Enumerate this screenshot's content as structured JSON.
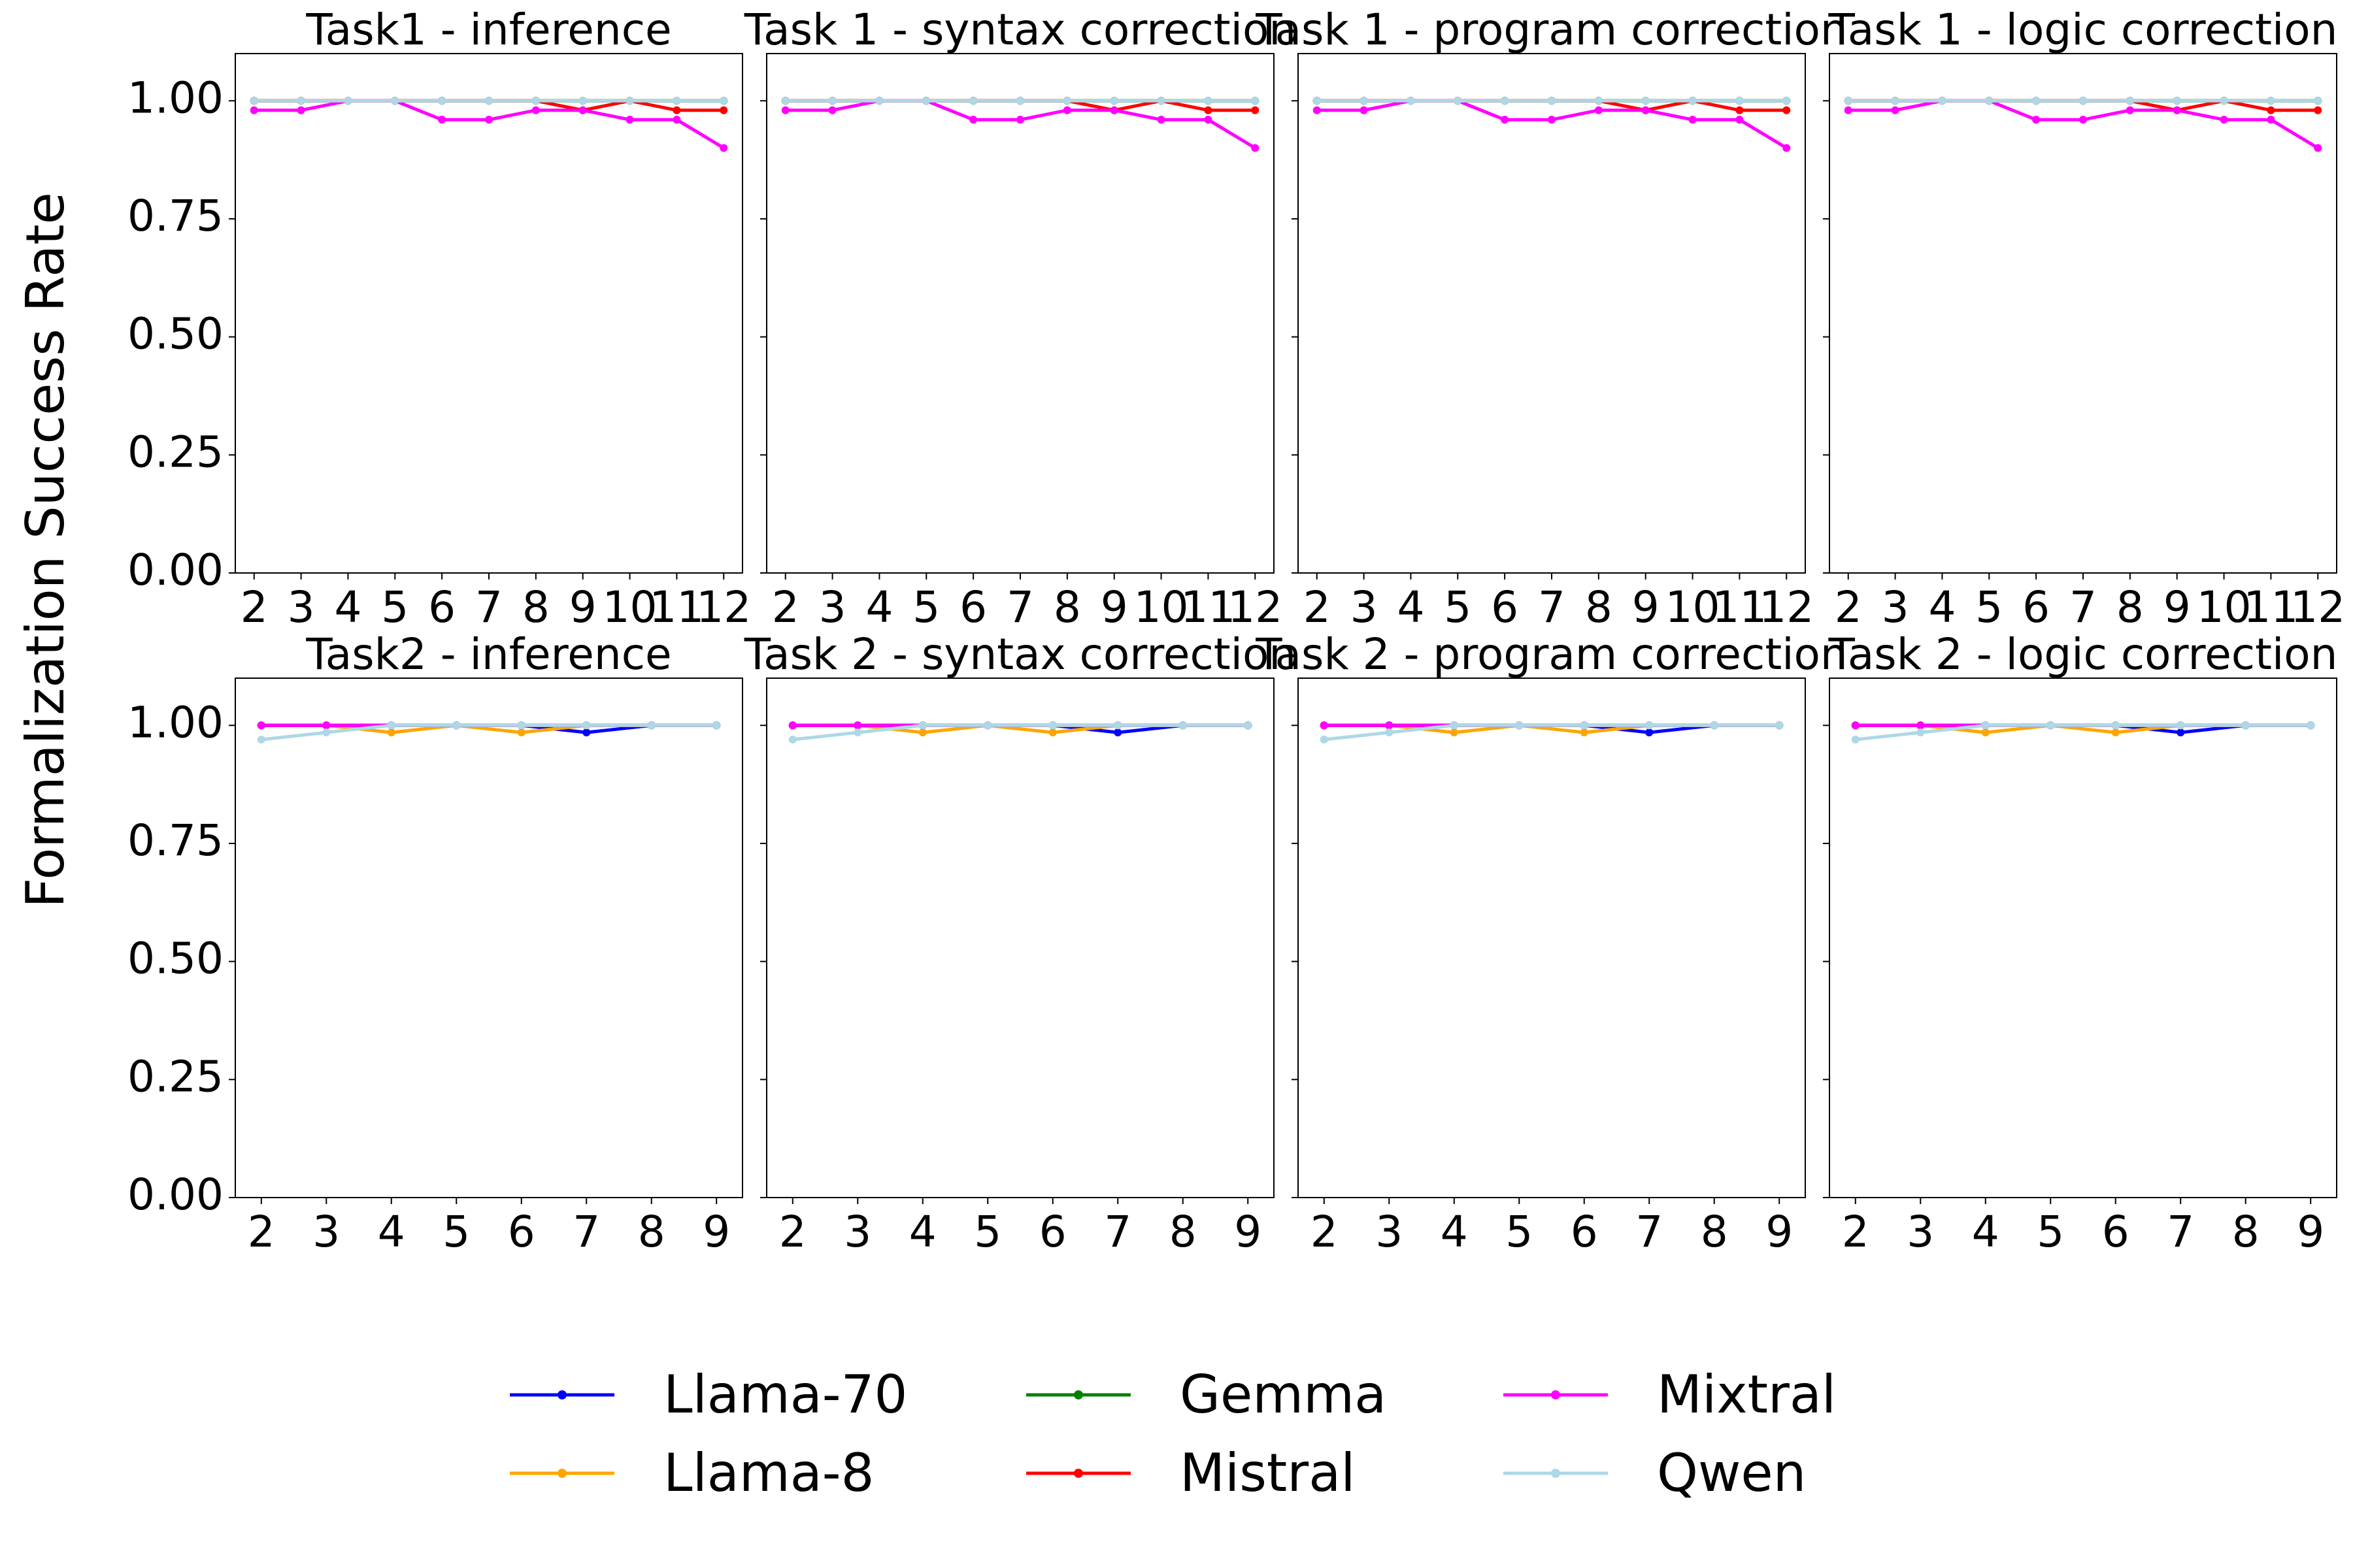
{
  "figure": {
    "ylabel": "Formalization Success Rate"
  },
  "colors": {
    "Llama-70": "#0000ff",
    "Llama-8": "#ffa500",
    "Gemma": "#008000",
    "Mistral": "#ff0000",
    "Mixtral": "#ff00ff",
    "Qwen": "#add8e6"
  },
  "legend": [
    "Llama-70",
    "Llama-8",
    "Gemma",
    "Mistral",
    "Mixtral",
    "Qwen"
  ],
  "chart_data": [
    {
      "type": "line",
      "title": "Task1 - inference",
      "x": [
        2,
        3,
        4,
        5,
        6,
        7,
        8,
        9,
        10,
        11,
        12
      ],
      "ylim": [
        0,
        1.1
      ],
      "yticks": [
        "0.00",
        "0.25",
        "0.50",
        "0.75",
        "1.00"
      ],
      "series": [
        {
          "name": "Llama-70",
          "values": [
            1,
            1,
            1,
            1,
            1,
            1,
            1,
            1,
            1,
            1,
            1
          ]
        },
        {
          "name": "Llama-8",
          "values": [
            1,
            1,
            1,
            1,
            1,
            1,
            1,
            1,
            1,
            1,
            1
          ]
        },
        {
          "name": "Gemma",
          "values": [
            1,
            1,
            1,
            1,
            1,
            1,
            1,
            1,
            1,
            1,
            1
          ]
        },
        {
          "name": "Mistral",
          "values": [
            1,
            1,
            1,
            1,
            1,
            1,
            1,
            0.98,
            1,
            0.98,
            0.98
          ]
        },
        {
          "name": "Mixtral",
          "values": [
            0.98,
            0.98,
            1,
            1,
            0.96,
            0.96,
            0.98,
            0.98,
            0.96,
            0.96,
            0.9
          ]
        },
        {
          "name": "Qwen",
          "values": [
            1,
            1,
            1,
            1,
            1,
            1,
            1,
            1,
            1,
            1,
            1
          ]
        }
      ]
    },
    {
      "type": "line",
      "title": "Task 1 - syntax correction",
      "x": [
        2,
        3,
        4,
        5,
        6,
        7,
        8,
        9,
        10,
        11,
        12
      ],
      "ylim": [
        0,
        1.1
      ],
      "yticks": [
        "0.00",
        "0.25",
        "0.50",
        "0.75",
        "1.00"
      ],
      "series": [
        {
          "name": "Llama-70",
          "values": [
            1,
            1,
            1,
            1,
            1,
            1,
            1,
            1,
            1,
            1,
            1
          ]
        },
        {
          "name": "Llama-8",
          "values": [
            1,
            1,
            1,
            1,
            1,
            1,
            1,
            1,
            1,
            1,
            1
          ]
        },
        {
          "name": "Gemma",
          "values": [
            1,
            1,
            1,
            1,
            1,
            1,
            1,
            1,
            1,
            1,
            1
          ]
        },
        {
          "name": "Mistral",
          "values": [
            1,
            1,
            1,
            1,
            1,
            1,
            1,
            0.98,
            1,
            0.98,
            0.98
          ]
        },
        {
          "name": "Mixtral",
          "values": [
            0.98,
            0.98,
            1,
            1,
            0.96,
            0.96,
            0.98,
            0.98,
            0.96,
            0.96,
            0.9
          ]
        },
        {
          "name": "Qwen",
          "values": [
            1,
            1,
            1,
            1,
            1,
            1,
            1,
            1,
            1,
            1,
            1
          ]
        }
      ]
    },
    {
      "type": "line",
      "title": "Task 1 - program correction",
      "x": [
        2,
        3,
        4,
        5,
        6,
        7,
        8,
        9,
        10,
        11,
        12
      ],
      "ylim": [
        0,
        1.1
      ],
      "yticks": [
        "0.00",
        "0.25",
        "0.50",
        "0.75",
        "1.00"
      ],
      "series": [
        {
          "name": "Llama-70",
          "values": [
            1,
            1,
            1,
            1,
            1,
            1,
            1,
            1,
            1,
            1,
            1
          ]
        },
        {
          "name": "Llama-8",
          "values": [
            1,
            1,
            1,
            1,
            1,
            1,
            1,
            1,
            1,
            1,
            1
          ]
        },
        {
          "name": "Gemma",
          "values": [
            1,
            1,
            1,
            1,
            1,
            1,
            1,
            1,
            1,
            1,
            1
          ]
        },
        {
          "name": "Mistral",
          "values": [
            1,
            1,
            1,
            1,
            1,
            1,
            1,
            0.98,
            1,
            0.98,
            0.98
          ]
        },
        {
          "name": "Mixtral",
          "values": [
            0.98,
            0.98,
            1,
            1,
            0.96,
            0.96,
            0.98,
            0.98,
            0.96,
            0.96,
            0.9
          ]
        },
        {
          "name": "Qwen",
          "values": [
            1,
            1,
            1,
            1,
            1,
            1,
            1,
            1,
            1,
            1,
            1
          ]
        }
      ]
    },
    {
      "type": "line",
      "title": "Task 1 - logic correction",
      "x": [
        2,
        3,
        4,
        5,
        6,
        7,
        8,
        9,
        10,
        11,
        12
      ],
      "ylim": [
        0,
        1.1
      ],
      "yticks": [
        "0.00",
        "0.25",
        "0.50",
        "0.75",
        "1.00"
      ],
      "series": [
        {
          "name": "Llama-70",
          "values": [
            1,
            1,
            1,
            1,
            1,
            1,
            1,
            1,
            1,
            1,
            1
          ]
        },
        {
          "name": "Llama-8",
          "values": [
            1,
            1,
            1,
            1,
            1,
            1,
            1,
            1,
            1,
            1,
            1
          ]
        },
        {
          "name": "Gemma",
          "values": [
            1,
            1,
            1,
            1,
            1,
            1,
            1,
            1,
            1,
            1,
            1
          ]
        },
        {
          "name": "Mistral",
          "values": [
            1,
            1,
            1,
            1,
            1,
            1,
            1,
            0.98,
            1,
            0.98,
            0.98
          ]
        },
        {
          "name": "Mixtral",
          "values": [
            0.98,
            0.98,
            1,
            1,
            0.96,
            0.96,
            0.98,
            0.98,
            0.96,
            0.96,
            0.9
          ]
        },
        {
          "name": "Qwen",
          "values": [
            1,
            1,
            1,
            1,
            1,
            1,
            1,
            1,
            1,
            1,
            1
          ]
        }
      ]
    },
    {
      "type": "line",
      "title": "Task2 - inference",
      "x": [
        2,
        3,
        4,
        5,
        6,
        7,
        8,
        9
      ],
      "ylim": [
        0,
        1.1
      ],
      "yticks": [
        "0.00",
        "0.25",
        "0.50",
        "0.75",
        "1.00"
      ],
      "series": [
        {
          "name": "Llama-70",
          "values": [
            1,
            1,
            1,
            1,
            1,
            0.985,
            1,
            1
          ]
        },
        {
          "name": "Llama-8",
          "values": [
            1,
            1,
            0.985,
            1,
            0.985,
            1,
            1,
            1
          ]
        },
        {
          "name": "Gemma",
          "values": [
            1,
            1,
            1,
            1,
            1,
            1,
            1,
            1
          ]
        },
        {
          "name": "Mistral",
          "values": [
            1,
            1,
            1,
            1,
            1,
            1,
            1,
            1
          ]
        },
        {
          "name": "Mixtral",
          "values": [
            1,
            1,
            1,
            1,
            1,
            1,
            1,
            1
          ]
        },
        {
          "name": "Qwen",
          "values": [
            0.97,
            0.985,
            1,
            1,
            1,
            1,
            1,
            1
          ]
        }
      ]
    },
    {
      "type": "line",
      "title": "Task 2 - syntax correction",
      "x": [
        2,
        3,
        4,
        5,
        6,
        7,
        8,
        9
      ],
      "ylim": [
        0,
        1.1
      ],
      "yticks": [
        "0.00",
        "0.25",
        "0.50",
        "0.75",
        "1.00"
      ],
      "series": [
        {
          "name": "Llama-70",
          "values": [
            1,
            1,
            1,
            1,
            1,
            0.985,
            1,
            1
          ]
        },
        {
          "name": "Llama-8",
          "values": [
            1,
            1,
            0.985,
            1,
            0.985,
            1,
            1,
            1
          ]
        },
        {
          "name": "Gemma",
          "values": [
            1,
            1,
            1,
            1,
            1,
            1,
            1,
            1
          ]
        },
        {
          "name": "Mistral",
          "values": [
            1,
            1,
            1,
            1,
            1,
            1,
            1,
            1
          ]
        },
        {
          "name": "Mixtral",
          "values": [
            1,
            1,
            1,
            1,
            1,
            1,
            1,
            1
          ]
        },
        {
          "name": "Qwen",
          "values": [
            0.97,
            0.985,
            1,
            1,
            1,
            1,
            1,
            1
          ]
        }
      ]
    },
    {
      "type": "line",
      "title": "Task 2 - program correction",
      "x": [
        2,
        3,
        4,
        5,
        6,
        7,
        8,
        9
      ],
      "ylim": [
        0,
        1.1
      ],
      "yticks": [
        "0.00",
        "0.25",
        "0.50",
        "0.75",
        "1.00"
      ],
      "series": [
        {
          "name": "Llama-70",
          "values": [
            1,
            1,
            1,
            1,
            1,
            0.985,
            1,
            1
          ]
        },
        {
          "name": "Llama-8",
          "values": [
            1,
            1,
            0.985,
            1,
            0.985,
            1,
            1,
            1
          ]
        },
        {
          "name": "Gemma",
          "values": [
            1,
            1,
            1,
            1,
            1,
            1,
            1,
            1
          ]
        },
        {
          "name": "Mistral",
          "values": [
            1,
            1,
            1,
            1,
            1,
            1,
            1,
            1
          ]
        },
        {
          "name": "Mixtral",
          "values": [
            1,
            1,
            1,
            1,
            1,
            1,
            1,
            1
          ]
        },
        {
          "name": "Qwen",
          "values": [
            0.97,
            0.985,
            1,
            1,
            1,
            1,
            1,
            1
          ]
        }
      ]
    },
    {
      "type": "line",
      "title": "Task 2 - logic correction",
      "x": [
        2,
        3,
        4,
        5,
        6,
        7,
        8,
        9
      ],
      "ylim": [
        0,
        1.1
      ],
      "yticks": [
        "0.00",
        "0.25",
        "0.50",
        "0.75",
        "1.00"
      ],
      "series": [
        {
          "name": "Llama-70",
          "values": [
            1,
            1,
            1,
            1,
            1,
            0.985,
            1,
            1
          ]
        },
        {
          "name": "Llama-8",
          "values": [
            1,
            1,
            0.985,
            1,
            0.985,
            1,
            1,
            1
          ]
        },
        {
          "name": "Gemma",
          "values": [
            1,
            1,
            1,
            1,
            1,
            1,
            1,
            1
          ]
        },
        {
          "name": "Mistral",
          "values": [
            1,
            1,
            1,
            1,
            1,
            1,
            1,
            1
          ]
        },
        {
          "name": "Mixtral",
          "values": [
            1,
            1,
            1,
            1,
            1,
            1,
            1,
            1
          ]
        },
        {
          "name": "Qwen",
          "values": [
            0.97,
            0.985,
            1,
            1,
            1,
            1,
            1,
            1
          ]
        }
      ]
    }
  ]
}
